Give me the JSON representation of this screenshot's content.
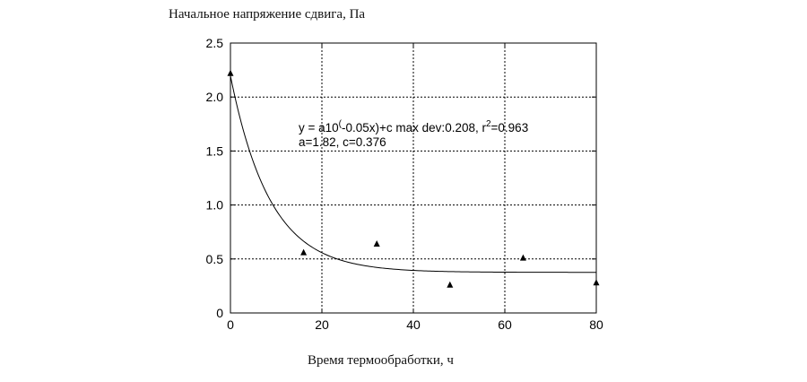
{
  "chart_data": {
    "type": "scatter",
    "ylabel": "Начальное напряжение сдвига, Па",
    "xlabel": "Время термообработки, ч",
    "xlim": [
      0,
      80
    ],
    "ylim": [
      0,
      2.5
    ],
    "x_ticks": [
      "0",
      "20",
      "40",
      "60",
      "80"
    ],
    "y_ticks": [
      "0",
      "0.5",
      "1.0",
      "1.5",
      "2.0",
      "2.5"
    ],
    "grid": true,
    "series": [
      {
        "marker": "triangle",
        "x": [
          0,
          16,
          32,
          48,
          64,
          80
        ],
        "y": [
          2.22,
          0.56,
          0.64,
          0.26,
          0.51,
          0.28
        ]
      }
    ],
    "fit": {
      "a": 1.82,
      "b": -0.05,
      "c": 0.376
    },
    "annotation": {
      "line1_pre": "y = a10",
      "line1_sup1": "(",
      "line1_mid": "-0.05x)+c max dev:0.208, r",
      "line1_sup2": "2",
      "line1_post": "=0.963",
      "line2": "a=1.82, c=0.376"
    }
  }
}
